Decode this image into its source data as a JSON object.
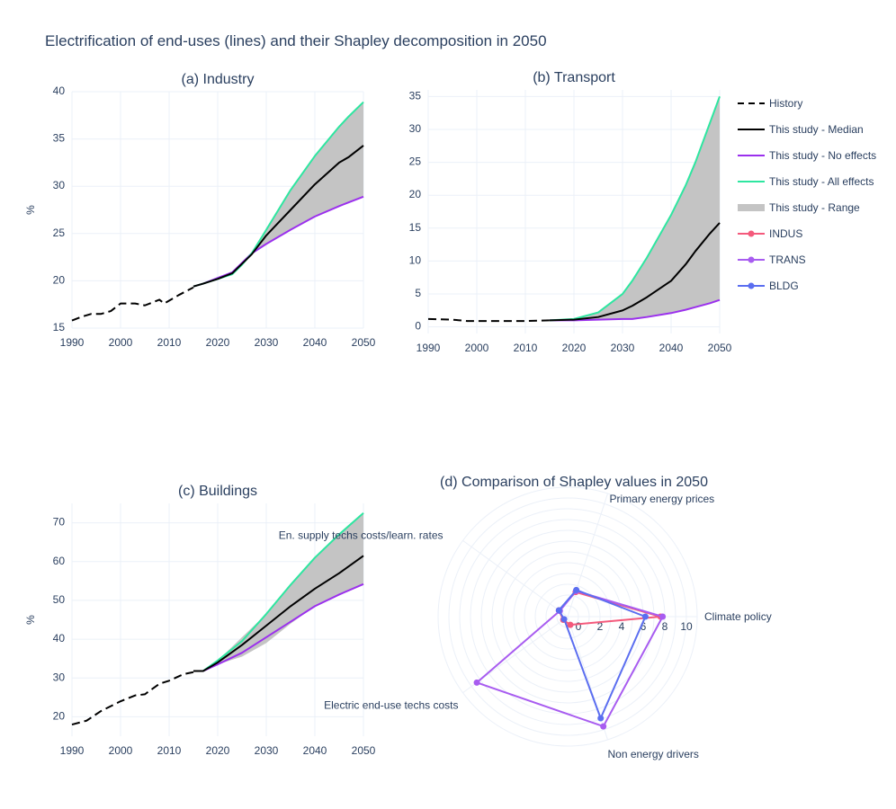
{
  "title": "Electrification of end-uses (lines) and their Shapley decomposition in 2050",
  "colors": {
    "history": "#000000",
    "median": "#000000",
    "no_effects": "#9b30ed",
    "all_effects": "#2ee6a0",
    "range": "#c4c4c4",
    "INDUS": "#f45a7c",
    "TRANS": "#a85cf0",
    "BLDG": "#5b6ef0",
    "grid": "#ebf0f8",
    "text": "#2a3f5f"
  },
  "legend": {
    "position": "right",
    "items": [
      {
        "key": "history",
        "label": "History",
        "style": "dash"
      },
      {
        "key": "median",
        "label": "This study - Median",
        "style": "line"
      },
      {
        "key": "no_effects",
        "label": "This study - No effects",
        "style": "line"
      },
      {
        "key": "all_effects",
        "label": "This study - All effects",
        "style": "line"
      },
      {
        "key": "range",
        "label": "This study - Range",
        "style": "band"
      },
      {
        "key": "INDUS",
        "label": "INDUS",
        "style": "marker-line"
      },
      {
        "key": "TRANS",
        "label": "TRANS",
        "style": "marker-line"
      },
      {
        "key": "BLDG",
        "label": "BLDG",
        "style": "marker-line"
      }
    ]
  },
  "chart_data": [
    {
      "type": "line",
      "title": "(a) Industry",
      "xlabel": "",
      "ylabel": "%",
      "xlim": [
        1990,
        2050
      ],
      "ylim": [
        15,
        40
      ],
      "grid": true,
      "xticks": [
        1990,
        2000,
        2010,
        2020,
        2030,
        2040,
        2050
      ],
      "yticks": [
        15,
        20,
        25,
        30,
        35,
        40
      ],
      "history": {
        "x": [
          1990,
          1992,
          1994,
          1996,
          1998,
          2000,
          2003,
          2005,
          2008,
          2009,
          2012,
          2015
        ],
        "y": [
          15.8,
          16.2,
          16.5,
          16.5,
          16.8,
          17.6,
          17.6,
          17.4,
          18.0,
          17.6,
          18.5,
          19.3
        ]
      },
      "x": [
        2015,
        2017,
        2020,
        2023,
        2025,
        2027,
        2030,
        2035,
        2040,
        2045,
        2047,
        2050
      ],
      "median": [
        19.4,
        19.7,
        20.2,
        20.8,
        21.8,
        22.8,
        24.8,
        27.5,
        30.2,
        32.5,
        33.1,
        34.3
      ],
      "no_effects": [
        19.4,
        19.7,
        20.3,
        20.9,
        21.9,
        22.9,
        23.9,
        25.4,
        26.8,
        27.9,
        28.3,
        28.9
      ],
      "all_effects": [
        19.4,
        19.7,
        20.2,
        20.7,
        21.7,
        22.9,
        25.4,
        29.6,
        33.2,
        36.3,
        37.4,
        38.9
      ],
      "range_low": [
        19.4,
        19.7,
        20.2,
        20.7,
        21.7,
        22.8,
        23.9,
        25.4,
        26.8,
        27.9,
        28.3,
        28.9
      ],
      "range_high": [
        19.4,
        19.7,
        20.3,
        20.9,
        21.9,
        22.9,
        25.4,
        29.6,
        33.2,
        36.3,
        37.4,
        38.9
      ]
    },
    {
      "type": "line",
      "title": "(b) Transport",
      "xlabel": "",
      "ylabel": "",
      "xlim": [
        1990,
        2050
      ],
      "ylim": [
        -1,
        36
      ],
      "grid": true,
      "xticks": [
        1990,
        2000,
        2010,
        2020,
        2030,
        2040,
        2050
      ],
      "yticks": [
        0,
        5,
        10,
        15,
        20,
        25,
        30,
        35
      ],
      "history": {
        "x": [
          1990,
          1995,
          1998,
          2005,
          2010,
          2015
        ],
        "y": [
          1.2,
          1.1,
          0.9,
          0.9,
          0.9,
          1.0
        ]
      },
      "x": [
        2015,
        2020,
        2025,
        2030,
        2032,
        2035,
        2040,
        2043,
        2045,
        2048,
        2050
      ],
      "median": [
        1.0,
        1.1,
        1.5,
        2.5,
        3.2,
        4.5,
        7.0,
        9.5,
        11.5,
        14.2,
        15.8
      ],
      "no_effects": [
        1.0,
        1.0,
        1.1,
        1.2,
        1.2,
        1.5,
        2.1,
        2.6,
        3.0,
        3.6,
        4.1
      ],
      "all_effects": [
        1.0,
        1.2,
        2.2,
        5.0,
        7.0,
        10.5,
        17.0,
        21.5,
        25.0,
        31.0,
        35.0
      ],
      "range_low": [
        1.0,
        1.0,
        1.1,
        1.2,
        1.2,
        1.5,
        2.1,
        2.6,
        3.0,
        3.6,
        4.1
      ],
      "range_high": [
        1.0,
        1.2,
        2.2,
        5.0,
        7.0,
        10.5,
        17.0,
        21.5,
        25.0,
        31.0,
        35.0
      ]
    },
    {
      "type": "line",
      "title": "(c) Buildings",
      "xlabel": "",
      "ylabel": "%",
      "xlim": [
        1990,
        2050
      ],
      "ylim": [
        15,
        75
      ],
      "grid": true,
      "xticks": [
        1990,
        2000,
        2010,
        2020,
        2030,
        2040,
        2050
      ],
      "yticks": [
        20,
        30,
        40,
        50,
        60,
        70
      ],
      "history": {
        "x": [
          1990,
          1993,
          1996,
          2000,
          2003,
          2005,
          2008,
          2010,
          2013,
          2015
        ],
        "y": [
          18,
          19,
          21.5,
          24,
          25.5,
          25.8,
          28.5,
          29.3,
          31,
          31.5
        ]
      },
      "x": [
        2015,
        2017,
        2020,
        2025,
        2030,
        2035,
        2040,
        2045,
        2050
      ],
      "median": [
        31.8,
        31.8,
        34,
        38.5,
        43.5,
        48.5,
        53,
        57,
        61.5
      ],
      "no_effects": [
        31.8,
        31.8,
        33.5,
        36.5,
        40.5,
        44.5,
        48.5,
        51.5,
        54.2
      ],
      "all_effects": [
        31.8,
        31.8,
        34.5,
        39.5,
        46.5,
        54,
        61,
        67,
        72.5
      ],
      "range_low": [
        31.8,
        31.8,
        33.5,
        35.5,
        39,
        44,
        48.5,
        51.5,
        54.2
      ],
      "range_high": [
        31.8,
        31.8,
        34.5,
        40.5,
        46.5,
        54,
        61,
        67,
        72.5
      ]
    },
    {
      "type": "radar",
      "title": "(d) Comparison of Shapley values in 2050",
      "radial_range": [
        -1,
        11
      ],
      "radial_ticks": [
        0,
        2,
        4,
        6,
        8,
        10
      ],
      "direction": "counterclockwise",
      "categories": [
        "Climate policy",
        "Primary energy prices",
        "En. supply techs costs/learn. rates",
        "Electric end-use techs costs",
        "Non energy drivers"
      ],
      "series": [
        {
          "name": "INDUS",
          "values": [
            7.6,
            1.4,
            0.0,
            -0.5,
            -0.2
          ]
        },
        {
          "name": "TRANS",
          "values": [
            7.8,
            1.5,
            -0.1,
            9.4,
            9.7
          ]
        },
        {
          "name": "BLDG",
          "values": [
            6.2,
            1.6,
            0.0,
            -0.6,
            8.9
          ]
        }
      ]
    }
  ]
}
